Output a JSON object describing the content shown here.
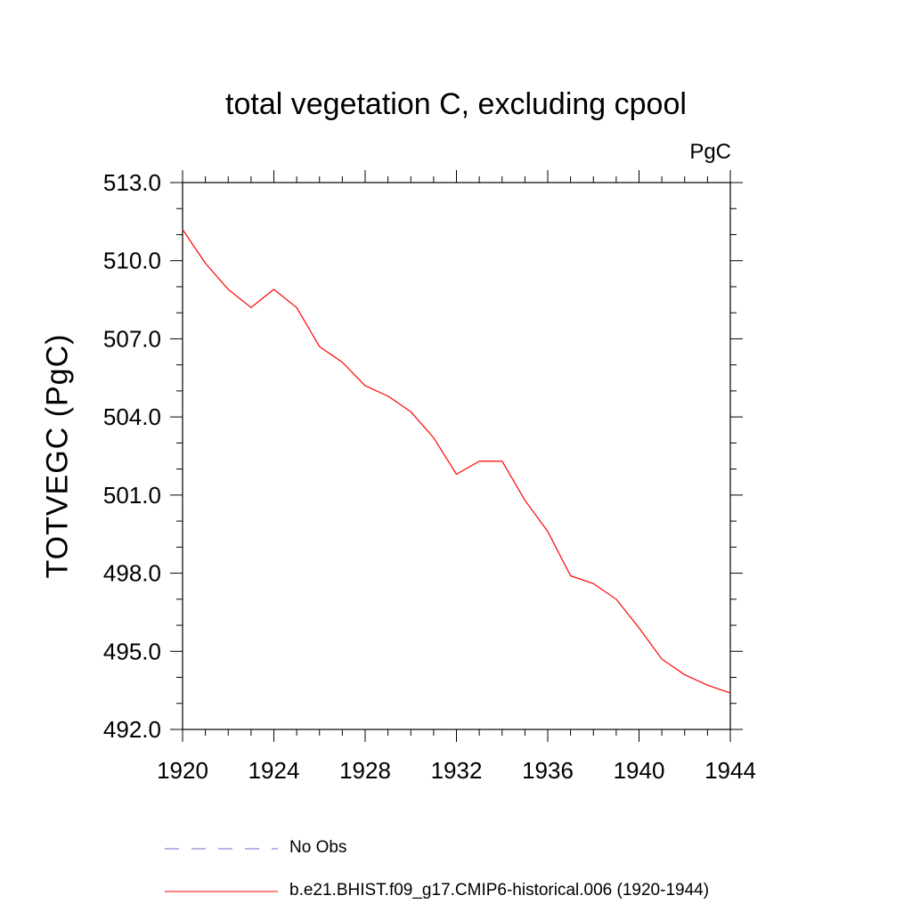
{
  "chart_data": {
    "type": "line",
    "title": "total vegetation C, excluding cpool",
    "units": "PgC",
    "ylabel": "TOTVEGC  (PgC)",
    "xlabel": "",
    "xlim": [
      1920,
      1944
    ],
    "ylim": [
      492.0,
      513.0
    ],
    "xticks": [
      "1920",
      "1924",
      "1928",
      "1932",
      "1936",
      "1940",
      "1944"
    ],
    "yticks": [
      "492.0",
      "495.0",
      "498.0",
      "501.0",
      "504.0",
      "507.0",
      "510.0",
      "513.0"
    ],
    "series": [
      {
        "name": "b.e21.BHIST.f09_g17.CMIP6-historical.006 (1920-1944)",
        "color": "#ff0000",
        "style": "solid",
        "x": [
          1920,
          1921,
          1922,
          1923,
          1924,
          1925,
          1926,
          1927,
          1928,
          1929,
          1930,
          1931,
          1932,
          1933,
          1934,
          1935,
          1936,
          1937,
          1938,
          1939,
          1940,
          1941,
          1942,
          1943,
          1944
        ],
        "y": [
          511.2,
          509.9,
          508.9,
          508.2,
          508.9,
          508.2,
          506.7,
          506.1,
          505.2,
          504.8,
          504.2,
          503.2,
          501.8,
          502.3,
          502.3,
          500.8,
          499.6,
          497.9,
          497.6,
          497.0,
          495.9,
          494.7,
          494.1,
          493.7,
          493.4
        ]
      }
    ],
    "legend": [
      {
        "label": "No Obs",
        "color": "#6a6ac8",
        "style": "dashed"
      },
      {
        "label": "b.e21.BHIST.f09_g17.CMIP6-historical.006 (1920-1944)",
        "color": "#ff0000",
        "style": "solid"
      }
    ],
    "legend_position": "bottom",
    "grid": false
  }
}
